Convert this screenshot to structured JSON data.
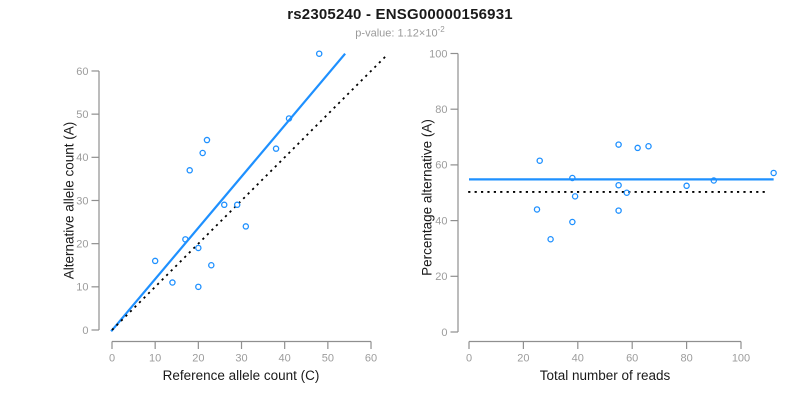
{
  "header": {
    "title": "rs2305240 - ENSG00000156931",
    "p_value_prefix": "p-value: 1.12×10",
    "p_value_exponent": "-2"
  },
  "colors": {
    "accent_blue": "#1E90FF",
    "line_black": "#000000",
    "axis_gray": "#8f8f8f",
    "tick_label_gray": "#9c9c9c",
    "title_black": "#1a1a1a",
    "subtitle_gray": "#9a9a9a"
  },
  "chart_data": [
    {
      "type": "scatter",
      "name": "allele-counts-scatter",
      "xlabel": "Reference allele count (C)",
      "ylabel": "Alternative allele count (A)",
      "xlim": [
        0,
        60
      ],
      "ylim": [
        0,
        60
      ],
      "xticks": [
        0,
        10,
        20,
        30,
        40,
        50,
        60
      ],
      "yticks": [
        0,
        10,
        20,
        30,
        40,
        50,
        60
      ],
      "grid": false,
      "points": [
        [
          10,
          16
        ],
        [
          14,
          11
        ],
        [
          17,
          21
        ],
        [
          18,
          37
        ],
        [
          20,
          19
        ],
        [
          20,
          10
        ],
        [
          21,
          41
        ],
        [
          22,
          44
        ],
        [
          23,
          15
        ],
        [
          26,
          29
        ],
        [
          29,
          29
        ],
        [
          31,
          24
        ],
        [
          38,
          42
        ],
        [
          41,
          49
        ],
        [
          48,
          64
        ]
      ],
      "lines": [
        {
          "name": "fitted-line",
          "style": "solid",
          "color": "#1E90FF",
          "width": 2.2,
          "x1": -0.2,
          "y1": -0.3,
          "x2": 54,
          "y2": 64
        },
        {
          "name": "identity-line",
          "style": "dotted",
          "color": "#000000",
          "width": 1.8,
          "x1": 0,
          "y1": 0,
          "x2": 63.5,
          "y2": 63.5
        }
      ]
    },
    {
      "type": "scatter",
      "name": "percentage-vs-reads-scatter",
      "xlabel": "Total number of reads",
      "ylabel": "Percentage alternative (A)",
      "xlim": [
        0,
        110
      ],
      "ylim": [
        0,
        100
      ],
      "xticks": [
        0,
        20,
        40,
        60,
        80,
        100
      ],
      "yticks": [
        0,
        20,
        40,
        60,
        80,
        100
      ],
      "grid": false,
      "points": [
        [
          25,
          44
        ],
        [
          26,
          61.5
        ],
        [
          30,
          33.3
        ],
        [
          38,
          39.5
        ],
        [
          38,
          55.3
        ],
        [
          39,
          48.7
        ],
        [
          55,
          43.6
        ],
        [
          55,
          52.7
        ],
        [
          55,
          67.3
        ],
        [
          58,
          50
        ],
        [
          62,
          66.1
        ],
        [
          66,
          66.7
        ],
        [
          80,
          52.5
        ],
        [
          90,
          54.4
        ],
        [
          112,
          57.1
        ]
      ],
      "lines": [
        {
          "name": "mean-percentage-line",
          "style": "solid",
          "color": "#1E90FF",
          "width": 2.2,
          "x1": 0,
          "y1": 54.8,
          "x2": 112,
          "y2": 54.8
        },
        {
          "name": "fifty-percent-line",
          "style": "dotted",
          "color": "#000000",
          "width": 1.8,
          "x1": -0.3,
          "y1": 50.3,
          "x2": 110,
          "y2": 50.3
        }
      ]
    }
  ]
}
